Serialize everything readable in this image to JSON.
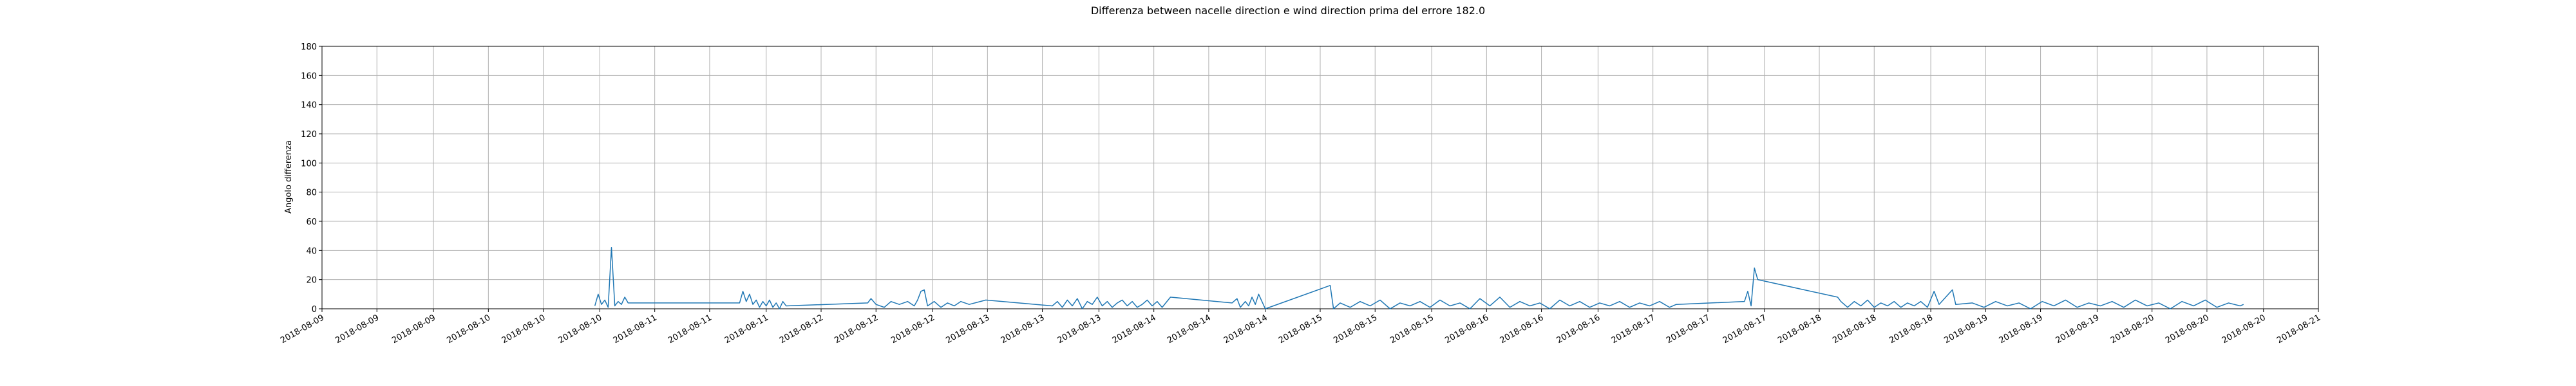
{
  "chart_data": {
    "type": "line",
    "title": "Differenza between nacelle direction e wind direction prima del errore 182.0",
    "ylabel": "Angolo differenza",
    "color": "#1f77b4",
    "grid": true,
    "xlim": [
      9,
      21
    ],
    "ylim": [
      0,
      180
    ],
    "yticks": [
      0,
      20,
      40,
      60,
      80,
      100,
      120,
      140,
      160,
      180
    ],
    "xticks": [
      {
        "value": 9,
        "label": "2018-08-09"
      },
      {
        "value": 9.33,
        "label": "2018-08-09"
      },
      {
        "value": 9.67,
        "label": "2018-08-09"
      },
      {
        "value": 10,
        "label": "2018-08-10"
      },
      {
        "value": 10.33,
        "label": "2018-08-10"
      },
      {
        "value": 10.67,
        "label": "2018-08-10"
      },
      {
        "value": 11,
        "label": "2018-08-11"
      },
      {
        "value": 11.33,
        "label": "2018-08-11"
      },
      {
        "value": 11.67,
        "label": "2018-08-11"
      },
      {
        "value": 12,
        "label": "2018-08-12"
      },
      {
        "value": 12.33,
        "label": "2018-08-12"
      },
      {
        "value": 12.67,
        "label": "2018-08-12"
      },
      {
        "value": 13,
        "label": "2018-08-13"
      },
      {
        "value": 13.33,
        "label": "2018-08-13"
      },
      {
        "value": 13.67,
        "label": "2018-08-13"
      },
      {
        "value": 14,
        "label": "2018-08-14"
      },
      {
        "value": 14.33,
        "label": "2018-08-14"
      },
      {
        "value": 14.67,
        "label": "2018-08-14"
      },
      {
        "value": 15,
        "label": "2018-08-15"
      },
      {
        "value": 15.33,
        "label": "2018-08-15"
      },
      {
        "value": 15.67,
        "label": "2018-08-15"
      },
      {
        "value": 16,
        "label": "2018-08-16"
      },
      {
        "value": 16.33,
        "label": "2018-08-16"
      },
      {
        "value": 16.67,
        "label": "2018-08-16"
      },
      {
        "value": 17,
        "label": "2018-08-17"
      },
      {
        "value": 17.33,
        "label": "2018-08-17"
      },
      {
        "value": 17.67,
        "label": "2018-08-17"
      },
      {
        "value": 18,
        "label": "2018-08-18"
      },
      {
        "value": 18.33,
        "label": "2018-08-18"
      },
      {
        "value": 18.67,
        "label": "2018-08-18"
      },
      {
        "value": 19,
        "label": "2018-08-19"
      },
      {
        "value": 19.33,
        "label": "2018-08-19"
      },
      {
        "value": 19.67,
        "label": "2018-08-19"
      },
      {
        "value": 20,
        "label": "2018-08-20"
      },
      {
        "value": 20.33,
        "label": "2018-08-20"
      },
      {
        "value": 20.67,
        "label": "2018-08-20"
      },
      {
        "value": 21,
        "label": "2018-08-21"
      }
    ],
    "x": [
      10.64,
      10.66,
      10.68,
      10.7,
      10.72,
      10.74,
      10.76,
      10.78,
      10.8,
      10.82,
      10.84,
      11.51,
      11.53,
      11.55,
      11.57,
      11.59,
      11.61,
      11.63,
      11.65,
      11.67,
      11.69,
      11.71,
      11.73,
      11.75,
      11.77,
      11.79,
      12.28,
      12.3,
      12.33,
      12.38,
      12.42,
      12.47,
      12.52,
      12.56,
      12.58,
      12.6,
      12.62,
      12.64,
      12.68,
      12.72,
      12.76,
      12.8,
      12.84,
      12.89,
      12.99,
      13.39,
      13.42,
      13.45,
      13.48,
      13.51,
      13.54,
      13.57,
      13.6,
      13.63,
      13.66,
      13.69,
      13.72,
      13.75,
      13.78,
      13.81,
      13.84,
      13.87,
      13.9,
      13.93,
      13.96,
      13.99,
      14.02,
      14.05,
      14.1,
      14.47,
      14.5,
      14.52,
      14.55,
      14.57,
      14.59,
      14.61,
      14.63,
      14.65,
      14.67,
      15.06,
      15.08,
      15.12,
      15.18,
      15.24,
      15.3,
      15.36,
      15.42,
      15.48,
      15.54,
      15.6,
      15.66,
      15.72,
      15.78,
      15.84,
      15.9,
      15.96,
      16.02,
      16.08,
      16.14,
      16.2,
      16.26,
      16.32,
      16.38,
      16.44,
      16.5,
      16.56,
      16.62,
      16.68,
      16.74,
      16.8,
      16.86,
      16.92,
      16.98,
      17.04,
      17.1,
      17.14,
      17.55,
      17.57,
      17.59,
      17.61,
      17.63,
      18.11,
      18.13,
      18.17,
      18.21,
      18.25,
      18.29,
      18.33,
      18.37,
      18.41,
      18.45,
      18.49,
      18.53,
      18.57,
      18.61,
      18.65,
      18.69,
      18.72,
      18.8,
      18.82,
      18.92,
      18.99,
      19.06,
      19.13,
      19.2,
      19.27,
      19.34,
      19.41,
      19.48,
      19.55,
      19.62,
      19.69,
      19.76,
      19.83,
      19.9,
      19.97,
      20.04,
      20.11,
      20.18,
      20.25,
      20.32,
      20.39,
      20.46,
      20.53,
      20.55
    ],
    "values": [
      2,
      10,
      3,
      6,
      1,
      42,
      2,
      5,
      3,
      8,
      4,
      4,
      12,
      5,
      10,
      3,
      6,
      1,
      5,
      2,
      6,
      1,
      4,
      0,
      5,
      2,
      4,
      7,
      3,
      1,
      5,
      3,
      5,
      2,
      6,
      12,
      13,
      2,
      5,
      1,
      4,
      2,
      5,
      3,
      6,
      2,
      5,
      1,
      6,
      2,
      7,
      0,
      5,
      3,
      8,
      2,
      5,
      1,
      4,
      6,
      2,
      5,
      1,
      3,
      6,
      2,
      5,
      1,
      8,
      4,
      7,
      1,
      5,
      2,
      8,
      3,
      10,
      5,
      0,
      16,
      0,
      4,
      1,
      5,
      2,
      6,
      0,
      4,
      2,
      5,
      1,
      6,
      2,
      4,
      0,
      7,
      2,
      8,
      1,
      5,
      2,
      4,
      0,
      6,
      2,
      5,
      1,
      4,
      2,
      5,
      1,
      4,
      2,
      5,
      1,
      3,
      5,
      12,
      2,
      28,
      20,
      8,
      5,
      1,
      5,
      2,
      6,
      1,
      4,
      2,
      5,
      1,
      4,
      2,
      5,
      1,
      12,
      3,
      13,
      3,
      4,
      1,
      5,
      2,
      4,
      0,
      5,
      2,
      6,
      1,
      4,
      2,
      5,
      1,
      6,
      2,
      4,
      0,
      5,
      2,
      6,
      1,
      4,
      2,
      3
    ]
  }
}
